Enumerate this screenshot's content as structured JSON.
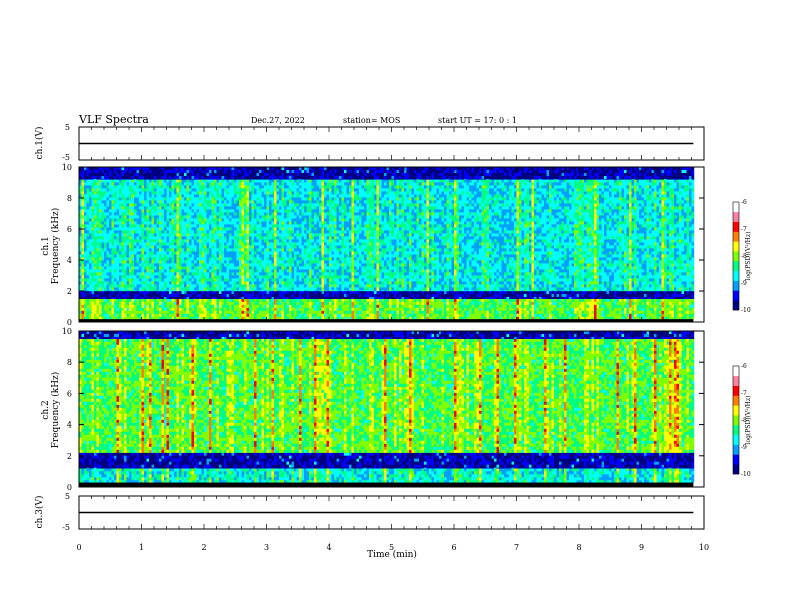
{
  "header": {
    "title": "VLF Spectra",
    "date": "Dec.27, 2022",
    "station": "station= MOS",
    "start_ut": "start  UT =   17: 0  : 1"
  },
  "chart_data": [
    {
      "id": "ch1-waveform",
      "type": "line",
      "ylabel": "ch.1(V)",
      "ylim": [
        -5,
        5
      ],
      "yticks": [
        "5",
        "-5"
      ],
      "xlim": [
        0,
        10
      ],
      "x": [
        0,
        9.83
      ],
      "y": [
        0,
        0
      ]
    },
    {
      "id": "ch1-spectrogram",
      "type": "heatmap",
      "ylabel": "Frequency (kHz)",
      "channel": "ch.1",
      "ylim": [
        0,
        10
      ],
      "yticks": [
        "0",
        "2",
        "4",
        "6",
        "8",
        "10"
      ],
      "xlim": [
        0,
        10
      ],
      "x_end": 9.83,
      "colorbar": {
        "label": "log(PSD)(V²/Hz)",
        "range": [
          -10,
          -6
        ],
        "ticks": [
          "-6",
          "-7",
          "-8",
          "-9",
          "-10"
        ],
        "colors": [
          "#000080",
          "#0000ff",
          "#00a0ff",
          "#00ffff",
          "#00ff80",
          "#80ff00",
          "#ffff00",
          "#ff8000",
          "#ff0000",
          "#ff80a0",
          "#ffffff"
        ]
      },
      "bands": [
        {
          "fmin": 0.2,
          "fmax": 1.5,
          "level": "high"
        },
        {
          "fmin": 1.5,
          "fmax": 2.0,
          "level": "background"
        },
        {
          "fmin": 2.0,
          "fmax": 9.2,
          "level": "mid"
        },
        {
          "fmin": 9.2,
          "fmax": 10.0,
          "level": "background"
        }
      ]
    },
    {
      "id": "ch2-spectrogram",
      "type": "heatmap",
      "ylabel": "Frequency (kHz)",
      "channel": "ch.2",
      "ylim": [
        0,
        10
      ],
      "yticks": [
        "0",
        "2",
        "4",
        "6",
        "8",
        "10"
      ],
      "xlim": [
        0,
        10
      ],
      "x_end": 9.83,
      "colorbar": {
        "label": "log(PSD)(V²/Hz)",
        "range": [
          -10,
          -6
        ],
        "ticks": [
          "-6",
          "-7",
          "-8",
          "-9",
          "-10"
        ],
        "colors": [
          "#000080",
          "#0000ff",
          "#00a0ff",
          "#00ffff",
          "#00ff80",
          "#80ff00",
          "#ffff00",
          "#ff8000",
          "#ff0000",
          "#ff80a0",
          "#ffffff"
        ]
      },
      "bands": [
        {
          "fmin": 0.3,
          "fmax": 1.2,
          "level": "mid"
        },
        {
          "fmin": 1.2,
          "fmax": 2.2,
          "level": "background"
        },
        {
          "fmin": 2.2,
          "fmax": 9.5,
          "level": "high"
        },
        {
          "fmin": 9.5,
          "fmax": 10.0,
          "level": "background"
        }
      ]
    },
    {
      "id": "ch3-waveform",
      "type": "line",
      "ylabel": "ch.3(V)",
      "ylim": [
        -5,
        5
      ],
      "yticks": [
        "5",
        "-5"
      ],
      "xlim": [
        0,
        10
      ],
      "xlabel": "Time  (min)",
      "xticks": [
        "0",
        "1",
        "2",
        "3",
        "4",
        "5",
        "6",
        "7",
        "8",
        "9",
        "10"
      ],
      "x": [
        0,
        9.83
      ],
      "y": [
        0,
        0
      ]
    }
  ]
}
